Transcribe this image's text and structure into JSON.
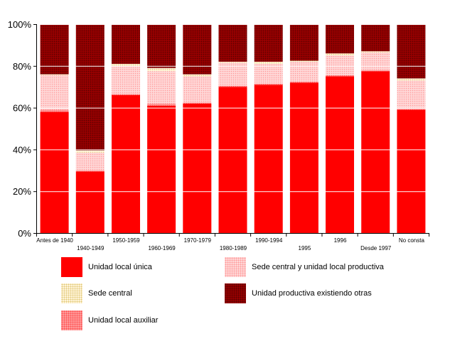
{
  "chart_data": {
    "type": "bar",
    "stacked": true,
    "normalized": true,
    "title": "",
    "xlabel": "",
    "ylabel": "",
    "ylim": [
      0,
      100
    ],
    "yticks": [
      "0%",
      "20%",
      "40%",
      "60%",
      "80%",
      "100%"
    ],
    "categories": [
      "Antes de 1940",
      "1940-1949",
      "1950-1959",
      "1960-1969",
      "1970-1979",
      "1980-1989",
      "1990-1994",
      "1995",
      "1996",
      "Desde 1997",
      "No consta"
    ],
    "series": [
      {
        "name": "Unidad local única",
        "key": "unica",
        "color": "#ff0000",
        "values": [
          58,
          29.5,
          66,
          61,
          62,
          70,
          71,
          72,
          75,
          77.5,
          59
        ]
      },
      {
        "name": "Unidad local auxiliar",
        "key": "auxiliar",
        "color": "#ff9a9a",
        "values": [
          1,
          0.5,
          0.5,
          1,
          0.5,
          0.5,
          0.5,
          0.5,
          0.5,
          0.5,
          0.5
        ]
      },
      {
        "name": "Sede central y unidad local productiva",
        "key": "sede_unidad",
        "color": "#ffd8d8",
        "values": [
          16.5,
          8.5,
          13.5,
          15.5,
          12.5,
          11,
          9.5,
          9.5,
          9.5,
          8.5,
          13.5
        ]
      },
      {
        "name": "Sede central",
        "key": "sede",
        "color": "#fff4d8",
        "values": [
          0.5,
          1,
          1,
          1.5,
          1,
          0.5,
          1,
          0.5,
          1,
          0.5,
          1
        ]
      },
      {
        "name": "Unidad productiva existiendo otras",
        "key": "existiendo",
        "color": "#990000",
        "values": [
          24,
          60.5,
          19,
          21,
          24,
          18,
          18,
          17.5,
          14,
          13,
          26
        ]
      }
    ],
    "legend_position": "bottom",
    "grid": true
  }
}
